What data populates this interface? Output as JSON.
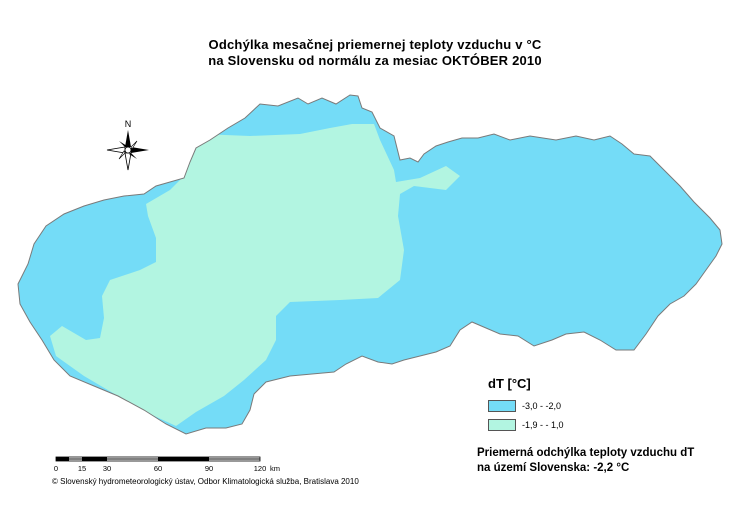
{
  "title": {
    "line1": "Odchýlka mesačnej priemernej teploty vzduchu v °C",
    "line2": "na Slovensku od normálu za mesiac OKTÓBER 2010"
  },
  "north_arrow": {
    "label": "N"
  },
  "legend": {
    "title": "dT [°C]",
    "classes": [
      {
        "label": "-3,0 - -2,0",
        "color": "#74dcf7"
      },
      {
        "label": "-1,9 - - 1,0",
        "color": "#b2f5e1"
      }
    ]
  },
  "average": {
    "line1": "Priemerná odchýlka teploty vzduchu dT",
    "line2_prefix": "na území Slovenska:",
    "line2_value": "-2,2 °C"
  },
  "scale_bar": {
    "ticks": [
      "0",
      "15",
      "30",
      "60",
      "90",
      "120"
    ],
    "unit": "km"
  },
  "copyright": "© Slovenský hydrometeorologický ústav, Odbor Klimatologická služba, Bratislava 2010",
  "colors": {
    "cold": "#74dcf7",
    "mild": "#b2f5e1",
    "border": "#7a7a7a"
  }
}
